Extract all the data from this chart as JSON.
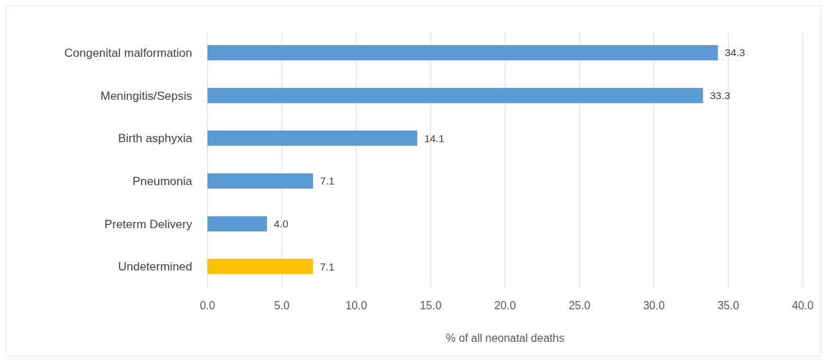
{
  "chart_data": {
    "type": "bar",
    "orientation": "horizontal",
    "categories": [
      "Congenital malformation",
      "Meningitis/Sepsis",
      "Birth asphyxia",
      "Pneumonia",
      "Preterm Delivery",
      "Undetermined"
    ],
    "values": [
      34.3,
      33.3,
      14.1,
      7.1,
      4.0,
      7.1
    ],
    "value_labels": [
      "34.3",
      "33.3",
      "14.1",
      "7.1",
      "4.0",
      "7.1"
    ],
    "colors": [
      "#5b9bd5",
      "#5b9bd5",
      "#5b9bd5",
      "#5b9bd5",
      "#5b9bd5",
      "#ffc000"
    ],
    "xlabel": "% of all neonatal deaths",
    "xlim": [
      0,
      40
    ],
    "xticks": [
      {
        "value": 0,
        "label": "0.0"
      },
      {
        "value": 5,
        "label": "5.0"
      },
      {
        "value": 10,
        "label": "10.0"
      },
      {
        "value": 15,
        "label": "15.0"
      },
      {
        "value": 20,
        "label": "20.0"
      },
      {
        "value": 25,
        "label": "25.0"
      },
      {
        "value": 30,
        "label": "30.0"
      },
      {
        "value": 35,
        "label": "35.0"
      },
      {
        "value": 40,
        "label": "40.0"
      }
    ],
    "grid": "x",
    "legend": false
  }
}
